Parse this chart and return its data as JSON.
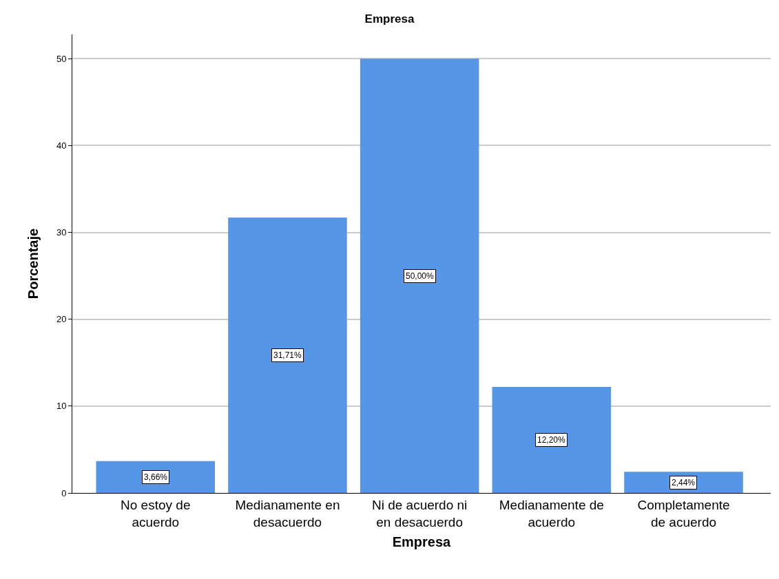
{
  "chart_data": {
    "type": "bar",
    "title": "Empresa",
    "xlabel": "Empresa",
    "ylabel": "Porcentaje",
    "categories": [
      "No estoy de\nacuerdo",
      "Medianamente en\ndesacuerdo",
      "Ni de acuerdo ni\nen desacuerdo",
      "Medianamente de\nacuerdo",
      "Completamente\nde acuerdo"
    ],
    "values": [
      3.66,
      31.71,
      50.0,
      12.2,
      2.44
    ],
    "value_labels": [
      "3,66%",
      "31,71%",
      "50,00%",
      "12,20%",
      "2,44%"
    ],
    "color": "#5596e6",
    "ylim": [
      0,
      52.8
    ],
    "yticks": [
      0,
      10,
      20,
      30,
      40,
      50
    ],
    "grid": "y"
  }
}
